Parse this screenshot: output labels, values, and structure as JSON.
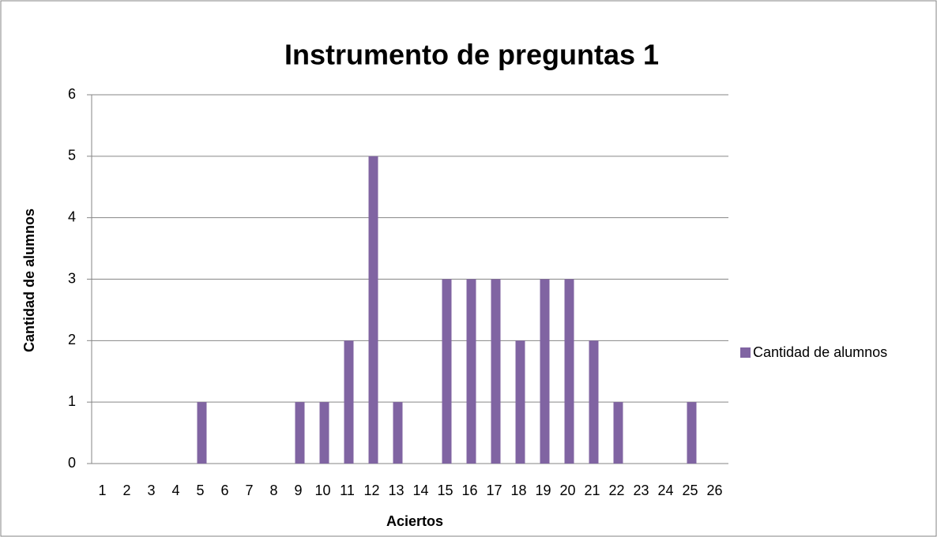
{
  "chart_data": {
    "type": "bar",
    "title": "Instrumento de preguntas 1",
    "x_label": "Aciertos",
    "y_label": "Cantidad de alumnos",
    "categories": [
      "1",
      "2",
      "3",
      "4",
      "5",
      "6",
      "7",
      "8",
      "9",
      "10",
      "11",
      "12",
      "13",
      "14",
      "15",
      "16",
      "17",
      "18",
      "19",
      "20",
      "21",
      "22",
      "23",
      "24",
      "25",
      "26"
    ],
    "series": [
      {
        "name": "Cantidad de alumnos",
        "color": "#8064a2",
        "values": [
          0,
          0,
          0,
          0,
          1,
          0,
          0,
          0,
          1,
          1,
          2,
          5,
          1,
          0,
          3,
          3,
          3,
          2,
          3,
          3,
          2,
          1,
          0,
          0,
          1,
          0
        ]
      }
    ],
    "ylim": [
      0,
      6
    ],
    "yticks": [
      0,
      1,
      2,
      3,
      4,
      5,
      6
    ],
    "grid": true,
    "legend": "right"
  }
}
